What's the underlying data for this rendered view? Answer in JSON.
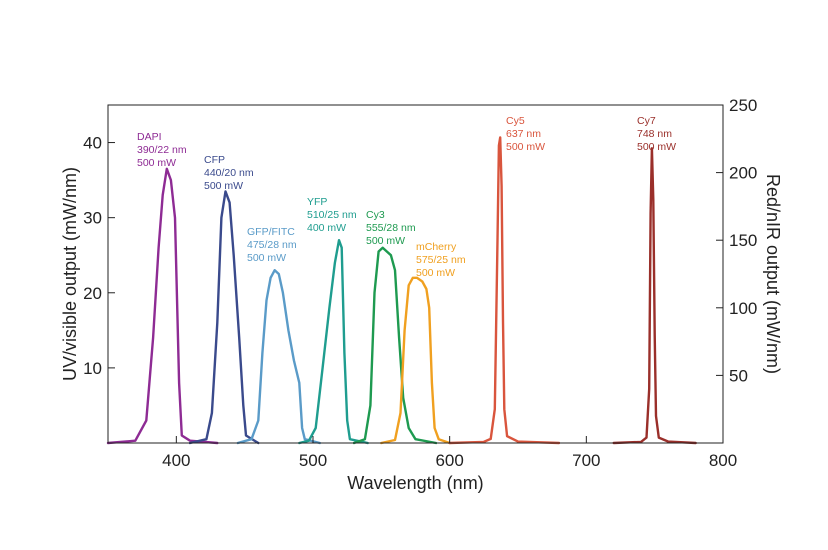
{
  "chart_data": {
    "type": "line",
    "title": "",
    "xlabel": "Wavelength (nm)",
    "ylabel_left": "UV/visible output (mW/nm)",
    "ylabel_right": "Red/nIR output (mW/nm)",
    "xlim": [
      350,
      800
    ],
    "ylim_left": [
      0,
      45
    ],
    "ylim_right": [
      0,
      250
    ],
    "x_ticks": [
      {
        "value": 400,
        "label": "400"
      },
      {
        "value": 500,
        "label": "500"
      },
      {
        "value": 600,
        "label": "600"
      },
      {
        "value": 700,
        "label": "700"
      },
      {
        "value": 800,
        "label": "800"
      }
    ],
    "y_ticks_left": [
      {
        "value": 10,
        "label": "10"
      },
      {
        "value": 20,
        "label": "20"
      },
      {
        "value": 30,
        "label": "30"
      },
      {
        "value": 40,
        "label": "40"
      }
    ],
    "y_ticks_right": [
      {
        "value": 50,
        "label": "50"
      },
      {
        "value": 100,
        "label": "100"
      },
      {
        "value": 150,
        "label": "150"
      },
      {
        "value": 200,
        "label": "200"
      },
      {
        "value": 250,
        "label": "250"
      }
    ],
    "grid": false,
    "series": [
      {
        "name": "DAPI",
        "center_nm": "390/22 nm",
        "power": "500 mW",
        "color": "#8e2b94",
        "axis": "left",
        "points": [
          [
            350,
            0
          ],
          [
            370,
            0.3
          ],
          [
            378,
            3
          ],
          [
            383,
            14
          ],
          [
            387,
            26
          ],
          [
            390,
            33
          ],
          [
            393,
            36.5
          ],
          [
            396,
            35
          ],
          [
            399,
            30
          ],
          [
            402,
            8
          ],
          [
            404,
            1
          ],
          [
            410,
            0.3
          ],
          [
            430,
            0
          ]
        ]
      },
      {
        "name": "CFP",
        "center_nm": "440/20 nm",
        "power": "500 mW",
        "color": "#3a4a8c",
        "axis": "left",
        "points": [
          [
            410,
            0
          ],
          [
            422,
            0.5
          ],
          [
            426,
            4
          ],
          [
            430,
            16
          ],
          [
            433,
            30
          ],
          [
            436,
            33.5
          ],
          [
            439,
            32
          ],
          [
            442,
            25
          ],
          [
            446,
            14
          ],
          [
            449,
            5
          ],
          [
            451,
            1
          ],
          [
            460,
            0
          ]
        ]
      },
      {
        "name": "GFP/FITC",
        "center_nm": "475/28 nm",
        "power": "500 mW",
        "color": "#5a9bc8",
        "axis": "left",
        "points": [
          [
            445,
            0
          ],
          [
            455,
            0.5
          ],
          [
            460,
            3
          ],
          [
            463,
            12
          ],
          [
            466,
            19
          ],
          [
            469,
            22
          ],
          [
            472,
            23
          ],
          [
            475,
            22.5
          ],
          [
            478,
            20
          ],
          [
            482,
            15
          ],
          [
            486,
            11
          ],
          [
            490,
            8
          ],
          [
            492,
            2
          ],
          [
            494,
            0.5
          ],
          [
            505,
            0
          ]
        ]
      },
      {
        "name": "YFP",
        "center_nm": "510/25 nm",
        "power": "400 mW",
        "color": "#1f9d8f",
        "axis": "left",
        "points": [
          [
            490,
            0
          ],
          [
            497,
            0.3
          ],
          [
            502,
            2
          ],
          [
            507,
            10
          ],
          [
            512,
            18
          ],
          [
            516,
            24
          ],
          [
            519,
            27
          ],
          [
            521,
            26
          ],
          [
            523,
            12
          ],
          [
            525,
            3
          ],
          [
            527,
            0.5
          ],
          [
            540,
            0
          ]
        ]
      },
      {
        "name": "Cy3",
        "center_nm": "555/28 nm",
        "power": "500 mW",
        "color": "#1e9a50",
        "axis": "left",
        "points": [
          [
            530,
            0
          ],
          [
            538,
            0.5
          ],
          [
            542,
            5
          ],
          [
            545,
            20
          ],
          [
            548,
            25.5
          ],
          [
            551,
            26
          ],
          [
            554,
            25.5
          ],
          [
            557,
            25
          ],
          [
            560,
            23
          ],
          [
            563,
            14
          ],
          [
            566,
            6
          ],
          [
            570,
            2
          ],
          [
            575,
            0.5
          ],
          [
            590,
            0
          ]
        ]
      },
      {
        "name": "mCherry",
        "center_nm": "575/25 nm",
        "power": "500 mW",
        "color": "#f0a020",
        "axis": "left",
        "points": [
          [
            550,
            0
          ],
          [
            560,
            0.4
          ],
          [
            564,
            4
          ],
          [
            567,
            15
          ],
          [
            570,
            21
          ],
          [
            573,
            22
          ],
          [
            576,
            22
          ],
          [
            580,
            21.5
          ],
          [
            583,
            20.5
          ],
          [
            585,
            18
          ],
          [
            587,
            8
          ],
          [
            589,
            2
          ],
          [
            592,
            0.5
          ],
          [
            600,
            0
          ]
        ]
      },
      {
        "name": "Cy5",
        "center_nm": "637 nm",
        "power": "500 mW",
        "color": "#d9553d",
        "axis": "right",
        "points": [
          [
            600,
            0
          ],
          [
            625,
            0.8
          ],
          [
            630,
            3
          ],
          [
            633,
            25
          ],
          [
            635,
            150
          ],
          [
            636,
            220
          ],
          [
            637,
            226
          ],
          [
            638,
            190
          ],
          [
            639,
            90
          ],
          [
            640,
            25
          ],
          [
            642,
            5
          ],
          [
            650,
            1
          ],
          [
            680,
            0
          ]
        ]
      },
      {
        "name": "Cy7",
        "center_nm": "748 nm",
        "power": "500 mW",
        "color": "#9a2f2a",
        "axis": "right",
        "points": [
          [
            720,
            0
          ],
          [
            740,
            0.8
          ],
          [
            744,
            4
          ],
          [
            746,
            40
          ],
          [
            747,
            170
          ],
          [
            748,
            218
          ],
          [
            749,
            180
          ],
          [
            750,
            80
          ],
          [
            751,
            20
          ],
          [
            753,
            4
          ],
          [
            760,
            1
          ],
          [
            780,
            0
          ]
        ]
      }
    ]
  }
}
